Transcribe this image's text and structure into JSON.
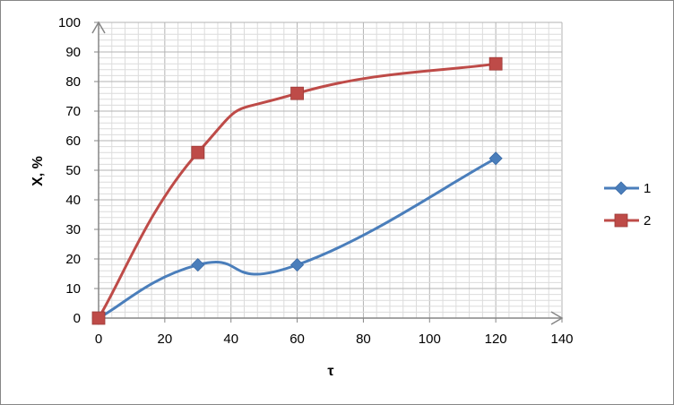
{
  "chart_data": {
    "type": "line",
    "xlabel": "τ",
    "ylabel": "X, %",
    "xlim": [
      0,
      140
    ],
    "ylim": [
      0,
      100
    ],
    "x_ticks": [
      0,
      20,
      40,
      60,
      80,
      100,
      120,
      140
    ],
    "y_ticks": [
      0,
      10,
      20,
      30,
      40,
      50,
      60,
      70,
      80,
      90,
      100
    ],
    "grid": true,
    "smooth": true,
    "legend_position": "right",
    "series": [
      {
        "name": "1",
        "color": "#4a7ebb",
        "marker": "diamond",
        "x": [
          0,
          30,
          60,
          120
        ],
        "y": [
          0,
          18,
          18,
          54
        ]
      },
      {
        "name": "2",
        "color": "#be4b48",
        "marker": "square",
        "x": [
          0,
          30,
          60,
          120
        ],
        "y": [
          0,
          56,
          76,
          86
        ]
      }
    ]
  }
}
